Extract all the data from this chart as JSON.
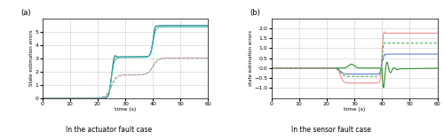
{
  "fig_width": 5.0,
  "fig_height": 1.58,
  "dpi": 100,
  "label_a": "(a)",
  "label_b": "(b)",
  "subtitle_a": "In the actuator fault case",
  "subtitle_b": "In the sensor fault case",
  "xlabel": "time (s)",
  "ylabel_a": "State estimation errors",
  "ylabel_b": "state estimation errors",
  "xlim": [
    0,
    60
  ],
  "ylim_a": [
    0,
    6
  ],
  "ylim_b": [
    -1.5,
    2.5
  ],
  "yticks_a": [
    0,
    1,
    2,
    3,
    4,
    5
  ],
  "yticks_b": [
    -1,
    -0.5,
    0,
    0.5,
    1,
    1.5,
    2
  ],
  "xticks": [
    0,
    10,
    20,
    30,
    40,
    50,
    60
  ],
  "grid_color": "#cccccc",
  "colors": {
    "teal_dark": "#007070",
    "teal_light": "#2db8a8",
    "pink_dashed": "#ddaaaa",
    "gray_dashed": "#999999",
    "green_solid": "#228B22",
    "blue_solid": "#5577cc",
    "pink_solid": "#ee8888",
    "green_dashed": "#44aa44"
  }
}
